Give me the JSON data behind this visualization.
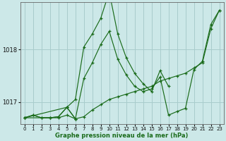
{
  "title": "Graphe pression niveau de la mer (hPa)",
  "bg_color": "#cce8e8",
  "grid_color": "#a8cccc",
  "line_color": "#1a6b1a",
  "ylim": [
    1016.58,
    1018.9
  ],
  "xlim": [
    -0.5,
    23.5
  ],
  "yticks": [
    1017,
    1018
  ],
  "xticks": [
    0,
    1,
    2,
    3,
    4,
    5,
    6,
    7,
    8,
    9,
    10,
    11,
    12,
    13,
    14,
    15,
    16,
    17,
    18,
    19,
    20,
    21,
    22,
    23
  ],
  "series": [
    {
      "x": [
        0,
        1,
        2,
        3,
        4,
        5,
        6,
        7,
        8,
        9,
        10,
        11,
        12,
        13,
        14,
        15,
        16,
        17,
        18,
        19,
        20,
        21,
        22,
        23
      ],
      "y": [
        1016.7,
        1016.75,
        1016.7,
        1016.7,
        1016.7,
        1016.75,
        1016.68,
        1016.72,
        1016.85,
        1016.95,
        1017.05,
        1017.1,
        1017.15,
        1017.2,
        1017.25,
        1017.3,
        1017.4,
        1017.45,
        1017.5,
        1017.55,
        1017.65,
        1017.75,
        1018.4,
        1018.75
      ]
    },
    {
      "x": [
        0,
        5,
        6,
        7,
        8,
        9,
        10,
        11,
        12,
        13,
        14,
        15,
        16,
        17
      ],
      "y": [
        1016.7,
        1016.9,
        1017.05,
        1018.05,
        1018.3,
        1018.6,
        1019.1,
        1018.3,
        1017.85,
        1017.55,
        1017.35,
        1017.2,
        1017.6,
        1017.3
      ]
    },
    {
      "x": [
        0,
        3,
        4,
        5,
        6,
        7,
        8,
        9,
        10,
        11,
        12,
        13,
        14,
        15,
        16,
        17,
        18,
        19,
        20,
        21,
        22,
        23
      ],
      "y": [
        1016.7,
        1016.7,
        1016.72,
        1016.9,
        1016.68,
        1017.45,
        1017.75,
        1018.1,
        1018.35,
        1017.82,
        1017.52,
        1017.3,
        1017.2,
        1017.25,
        1017.48,
        1016.75,
        1016.82,
        1016.88,
        1017.62,
        1017.78,
        1018.48,
        1018.75
      ]
    },
    {
      "x": [
        0,
        1,
        2,
        3,
        4,
        5,
        6
      ],
      "y": [
        1016.7,
        1016.75,
        1016.7,
        1016.7,
        1016.72,
        1016.9,
        1016.68
      ]
    }
  ]
}
